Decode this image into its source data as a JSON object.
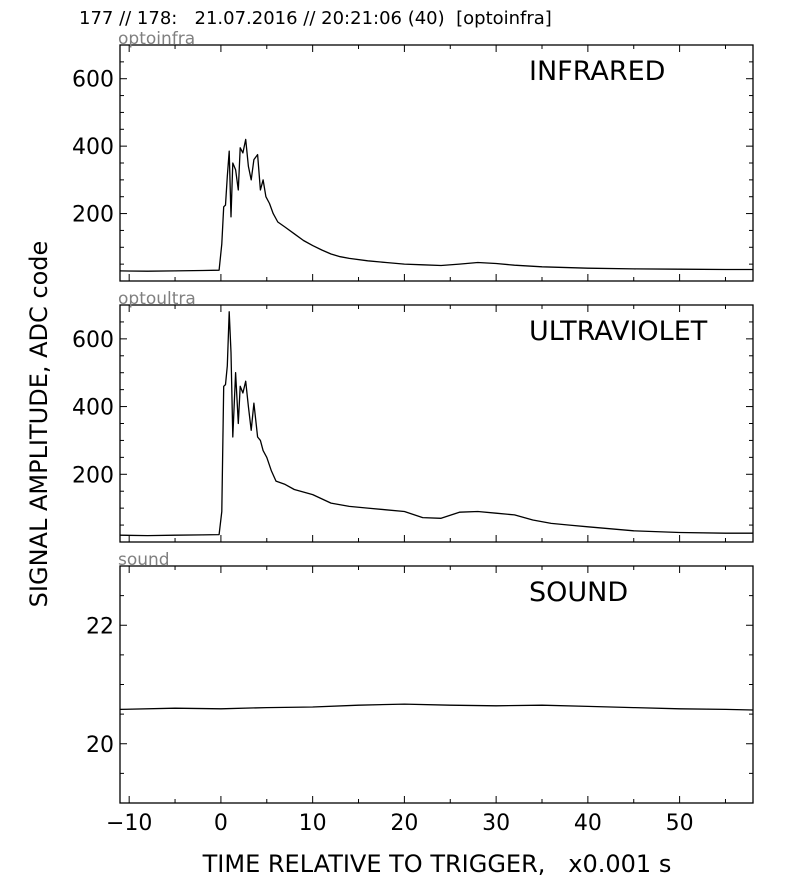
{
  "figure": {
    "header": "177 // 178:   21.07.2016 // 20:21:06 (40)  [optoinfra]",
    "ylabel": "SIGNAL AMPLITUDE,  ADC code",
    "xlabel": "TIME RELATIVE TO TRIGGER,   x0.001 s"
  },
  "chart_data": [
    {
      "type": "line",
      "channel": "optoinfra",
      "title": "INFRARED",
      "xlim": [
        -11,
        58
      ],
      "ylim": [
        0,
        700
      ],
      "x_ticks": [
        -10,
        0,
        10,
        20,
        30,
        40,
        50
      ],
      "y_ticks": [
        200,
        400,
        600
      ],
      "x_ticklabels_visible": false,
      "series": [
        {
          "color": "#000000",
          "points": [
            [
              -11,
              30
            ],
            [
              -8,
              29
            ],
            [
              -5,
              30
            ],
            [
              -2,
              31
            ],
            [
              -0.2,
              32
            ],
            [
              0.1,
              110
            ],
            [
              0.3,
              220
            ],
            [
              0.5,
              225
            ],
            [
              0.7,
              310
            ],
            [
              0.9,
              385
            ],
            [
              1.1,
              190
            ],
            [
              1.3,
              350
            ],
            [
              1.6,
              330
            ],
            [
              1.9,
              270
            ],
            [
              2.1,
              395
            ],
            [
              2.4,
              380
            ],
            [
              2.7,
              420
            ],
            [
              3.0,
              340
            ],
            [
              3.3,
              300
            ],
            [
              3.6,
              360
            ],
            [
              4.0,
              375
            ],
            [
              4.3,
              270
            ],
            [
              4.6,
              300
            ],
            [
              4.9,
              250
            ],
            [
              5.3,
              230
            ],
            [
              5.7,
              200
            ],
            [
              6.2,
              175
            ],
            [
              7,
              160
            ],
            [
              8,
              140
            ],
            [
              9,
              120
            ],
            [
              10,
              105
            ],
            [
              11,
              92
            ],
            [
              12,
              80
            ],
            [
              13,
              72
            ],
            [
              14,
              67
            ],
            [
              16,
              60
            ],
            [
              18,
              55
            ],
            [
              20,
              50
            ],
            [
              22,
              48
            ],
            [
              24,
              46
            ],
            [
              26,
              50
            ],
            [
              28,
              55
            ],
            [
              30,
              52
            ],
            [
              32,
              47
            ],
            [
              35,
              42
            ],
            [
              40,
              38
            ],
            [
              45,
              36
            ],
            [
              50,
              35
            ],
            [
              55,
              34
            ],
            [
              58,
              34
            ]
          ]
        }
      ]
    },
    {
      "type": "line",
      "channel": "optoultra",
      "title": "ULTRAVIOLET",
      "xlim": [
        -11,
        58
      ],
      "ylim": [
        0,
        700
      ],
      "x_ticks": [
        -10,
        0,
        10,
        20,
        30,
        40,
        50
      ],
      "y_ticks": [
        200,
        400,
        600
      ],
      "x_ticklabels_visible": false,
      "series": [
        {
          "color": "#000000",
          "points": [
            [
              -11,
              20
            ],
            [
              -8,
              19
            ],
            [
              -5,
              20
            ],
            [
              -2,
              21
            ],
            [
              -0.2,
              22
            ],
            [
              0.1,
              90
            ],
            [
              0.3,
              460
            ],
            [
              0.5,
              465
            ],
            [
              0.7,
              520
            ],
            [
              0.9,
              680
            ],
            [
              1.1,
              560
            ],
            [
              1.3,
              310
            ],
            [
              1.6,
              500
            ],
            [
              1.9,
              350
            ],
            [
              2.1,
              460
            ],
            [
              2.4,
              440
            ],
            [
              2.7,
              475
            ],
            [
              3.0,
              400
            ],
            [
              3.3,
              330
            ],
            [
              3.6,
              410
            ],
            [
              4.0,
              310
            ],
            [
              4.3,
              300
            ],
            [
              4.6,
              270
            ],
            [
              5.0,
              250
            ],
            [
              5.5,
              210
            ],
            [
              6.0,
              180
            ],
            [
              7,
              170
            ],
            [
              8,
              155
            ],
            [
              10,
              140
            ],
            [
              12,
              115
            ],
            [
              14,
              105
            ],
            [
              16,
              100
            ],
            [
              18,
              95
            ],
            [
              20,
              90
            ],
            [
              22,
              72
            ],
            [
              24,
              70
            ],
            [
              26,
              88
            ],
            [
              28,
              90
            ],
            [
              30,
              85
            ],
            [
              32,
              80
            ],
            [
              34,
              65
            ],
            [
              36,
              55
            ],
            [
              38,
              50
            ],
            [
              40,
              45
            ],
            [
              45,
              33
            ],
            [
              50,
              28
            ],
            [
              55,
              26
            ],
            [
              58,
              26
            ]
          ]
        }
      ]
    },
    {
      "type": "line",
      "channel": "sound",
      "title": "SOUND",
      "xlim": [
        -11,
        58
      ],
      "ylim": [
        19,
        23
      ],
      "x_ticks": [
        -10,
        0,
        10,
        20,
        30,
        40,
        50
      ],
      "x_ticklabels": [
        "−10",
        "0",
        "10",
        "20",
        "30",
        "40",
        "50"
      ],
      "y_ticks": [
        20,
        22
      ],
      "x_ticklabels_visible": true,
      "series": [
        {
          "color": "#000000",
          "points": [
            [
              -11,
              20.58
            ],
            [
              -5,
              20.6
            ],
            [
              0,
              20.59
            ],
            [
              5,
              20.61
            ],
            [
              10,
              20.62
            ],
            [
              15,
              20.65
            ],
            [
              20,
              20.67
            ],
            [
              25,
              20.65
            ],
            [
              30,
              20.64
            ],
            [
              35,
              20.65
            ],
            [
              40,
              20.63
            ],
            [
              45,
              20.61
            ],
            [
              50,
              20.59
            ],
            [
              55,
              20.58
            ],
            [
              58,
              20.57
            ]
          ]
        }
      ]
    }
  ]
}
